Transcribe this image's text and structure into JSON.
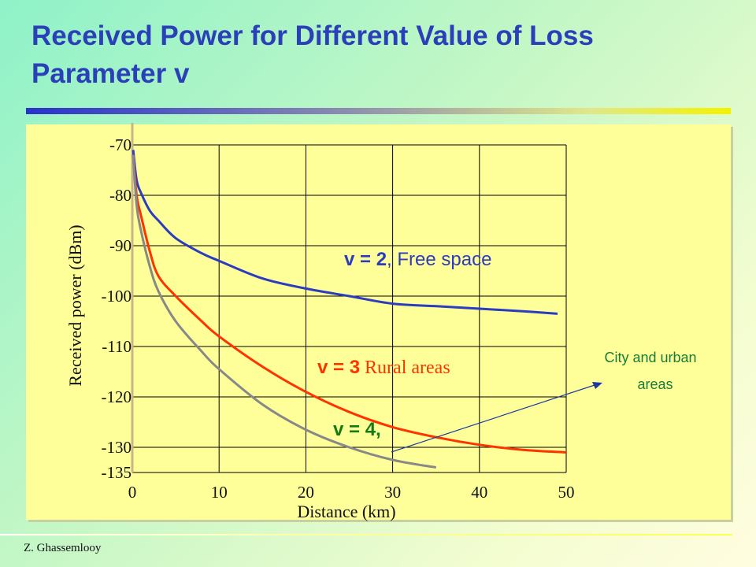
{
  "slide": {
    "title_line1": "Received Power for Different Value of Loss",
    "title_line2": "Parameter v",
    "author": "Z. Ghassemlooy",
    "callout": {
      "line1": "City and urban",
      "line2": "areas"
    }
  },
  "colors": {
    "title": "#2b3fb8",
    "panel": "#ffff99",
    "v2": "#2c3cc0",
    "v3": "#ff3300",
    "v4": "#888888",
    "v4_label": "#147a14"
  },
  "chart_data": {
    "type": "line",
    "xlabel": "Distance (km)",
    "ylabel": "Received power (dBm)",
    "xlim": [
      0,
      50
    ],
    "ylim": [
      -135,
      -70
    ],
    "x_ticks": [
      "0",
      "10",
      "20",
      "30",
      "40",
      "50"
    ],
    "y_ticks": [
      "-70",
      "-80",
      "-90",
      "-100",
      "-110",
      "-120",
      "-130",
      "-135"
    ],
    "grid": true,
    "series": [
      {
        "label_prefix": "v = 2",
        "label_suffix": ", Free space",
        "x": [
          0.1,
          0.5,
          1,
          2,
          3,
          5,
          8,
          10,
          15,
          20,
          25,
          30,
          35,
          40,
          45,
          49
        ],
        "y": [
          -71,
          -77,
          -79.5,
          -83,
          -85,
          -88.5,
          -91.5,
          -93,
          -96.5,
          -98.5,
          -100,
          -101.5,
          -102,
          -102.5,
          -103,
          -103.5
        ]
      },
      {
        "label_prefix": "v = 3",
        "label_suffix": " Rural areas",
        "x": [
          0.1,
          0.5,
          1,
          2,
          3,
          5,
          8,
          10,
          15,
          20,
          25,
          30,
          35,
          40,
          45,
          50
        ],
        "y": [
          -72,
          -80,
          -84,
          -91,
          -96,
          -100,
          -105,
          -108,
          -114,
          -119,
          -123,
          -126,
          -128,
          -129.5,
          -130.5,
          -131
        ]
      },
      {
        "label_prefix": "v = 4,",
        "label_suffix": "",
        "x": [
          0.1,
          0.5,
          1,
          2,
          3,
          5,
          8,
          10,
          15,
          20,
          25,
          30,
          35
        ],
        "y": [
          -72,
          -82,
          -87,
          -94,
          -99,
          -105,
          -111,
          -114.5,
          -121.5,
          -126.5,
          -130,
          -132.5,
          -134
        ]
      }
    ]
  }
}
